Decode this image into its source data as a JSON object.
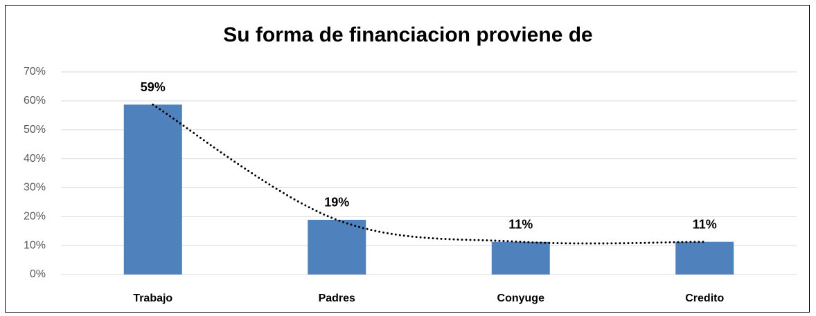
{
  "chart_data": {
    "type": "bar",
    "title": "Su forma de financiacion proviene de",
    "categories": [
      "Trabajo",
      "Padres",
      "Conyuge",
      "Credito"
    ],
    "values": [
      58.7,
      18.9,
      11.3,
      11.3
    ],
    "value_labels": [
      "59%",
      "19%",
      "11%",
      "11%"
    ],
    "color": "#4f81bd",
    "ylim": [
      0,
      70
    ],
    "yticks": [
      {
        "value": 0,
        "label": "0%"
      },
      {
        "value": 10,
        "label": "10%"
      },
      {
        "value": 20,
        "label": "20%"
      },
      {
        "value": 30,
        "label": "30%"
      },
      {
        "value": 40,
        "label": "40%"
      },
      {
        "value": 50,
        "label": "50%"
      },
      {
        "value": 60,
        "label": "60%"
      },
      {
        "value": 70,
        "label": "70%"
      }
    ],
    "grid": true,
    "trendline": true
  }
}
